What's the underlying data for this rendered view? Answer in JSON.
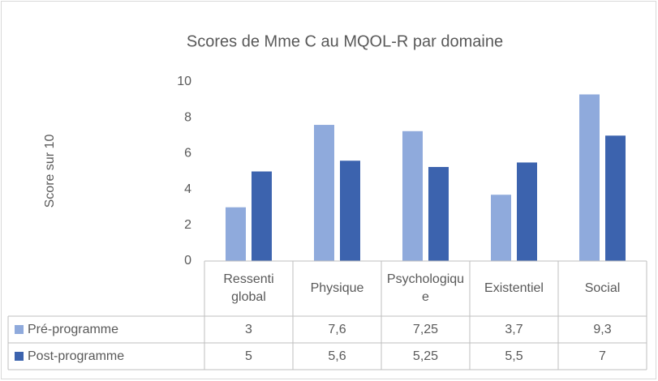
{
  "chart_data": {
    "type": "bar",
    "title": "Scores de Mme C au MQOL-R  par domaine",
    "y_label": "Score sur 10",
    "categories": [
      "Ressenti global",
      "Physique",
      "Psychologique",
      "Existentiel",
      "Social"
    ],
    "series": [
      {
        "name": "Pré-programme",
        "color": "#8faadc",
        "values": [
          3,
          7.6,
          7.25,
          3.7,
          9.3
        ],
        "value_labels": [
          "3",
          "7,6",
          "7,25",
          "3,7",
          "9,3"
        ]
      },
      {
        "name": "Post-programme",
        "color": "#3c63ae",
        "values": [
          5,
          5.6,
          5.25,
          5.5,
          7
        ],
        "value_labels": [
          "5",
          "5,6",
          "5,25",
          "5,5",
          "7"
        ]
      }
    ],
    "ylim": [
      0,
      10
    ],
    "yticks": [
      0,
      2,
      4,
      6,
      8,
      10
    ],
    "grid": false
  }
}
